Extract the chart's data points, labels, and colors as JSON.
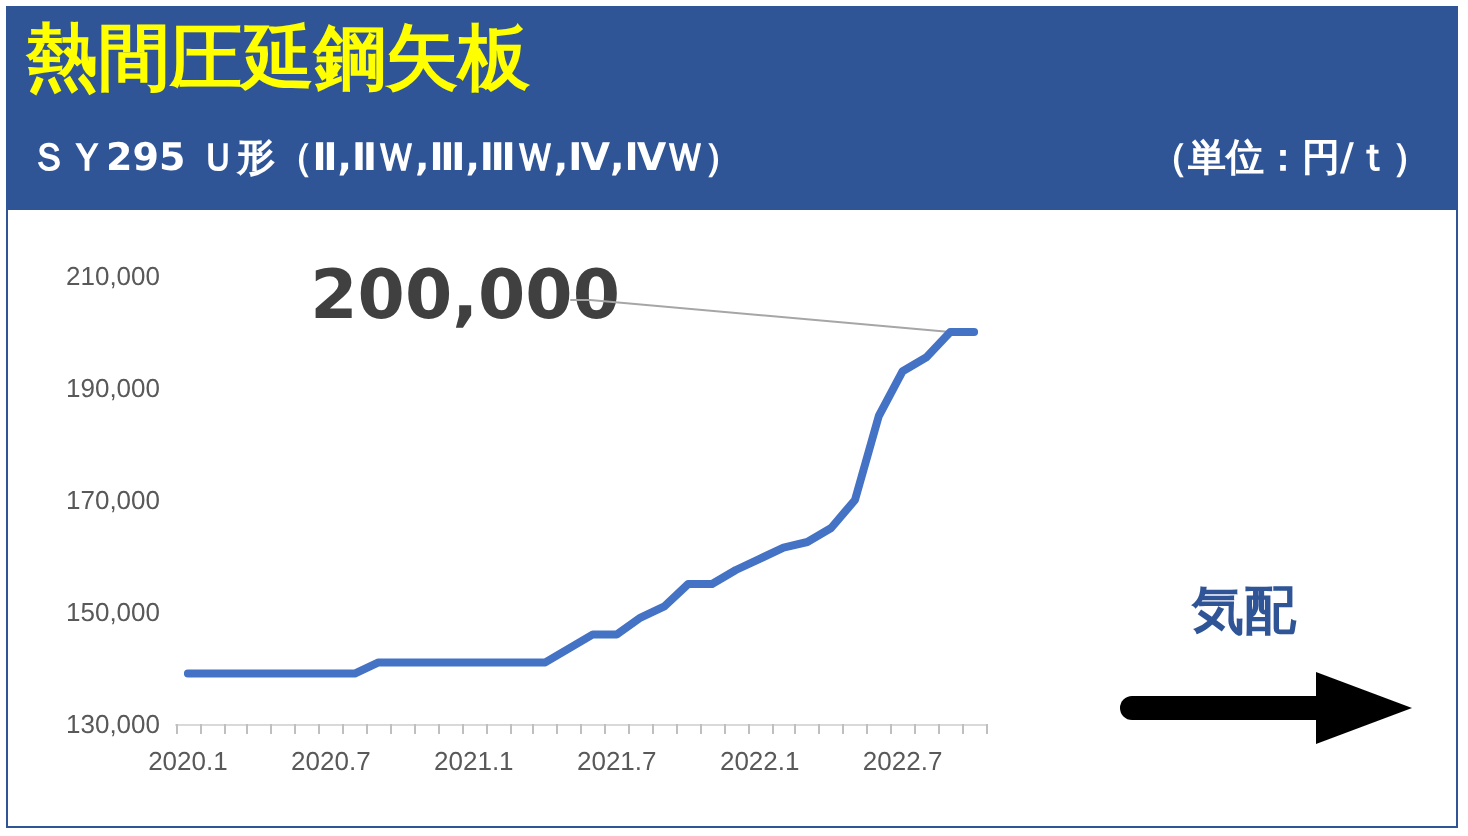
{
  "chart_data": {
    "type": "line",
    "title": "熱間圧延鋼矢板",
    "subtitle": "ＳＹ295 Ｕ形（Ⅱ,ⅡＷ,Ⅲ,ⅢＷ,Ⅳ,ⅣＷ）",
    "ylabel": "（単位：円/ｔ）",
    "categories": [
      "2020.1",
      null,
      null,
      null,
      null,
      null,
      "2020.7",
      null,
      null,
      null,
      null,
      null,
      "2021.1",
      null,
      null,
      null,
      null,
      null,
      "2021.7",
      null,
      null,
      null,
      null,
      null,
      "2022.1",
      null,
      null,
      null,
      null,
      null,
      "2022.7",
      null,
      null,
      null
    ],
    "series": [
      {
        "color": "#4472c4",
        "values": [
          139000,
          139000,
          139000,
          139000,
          139000,
          139000,
          139000,
          139000,
          141000,
          141000,
          141000,
          141000,
          141000,
          141000,
          141000,
          141000,
          143500,
          146000,
          146000,
          149000,
          151000,
          155000,
          155000,
          157500,
          159500,
          161500,
          162500,
          165000,
          170000,
          185000,
          193000,
          195500,
          200000,
          200000
        ]
      }
    ],
    "ylim": [
      130000,
      210000
    ],
    "yticks": [
      {
        "value": 130000,
        "label": "130,000"
      },
      {
        "value": 150000,
        "label": "150,000"
      },
      {
        "value": 170000,
        "label": "170,000"
      },
      {
        "value": 190000,
        "label": "190,000"
      },
      {
        "value": 210000,
        "label": "210,000"
      }
    ],
    "annotations": [
      "200,000",
      "気配"
    ],
    "grid": false,
    "marker": "none",
    "line_style": "solid"
  }
}
